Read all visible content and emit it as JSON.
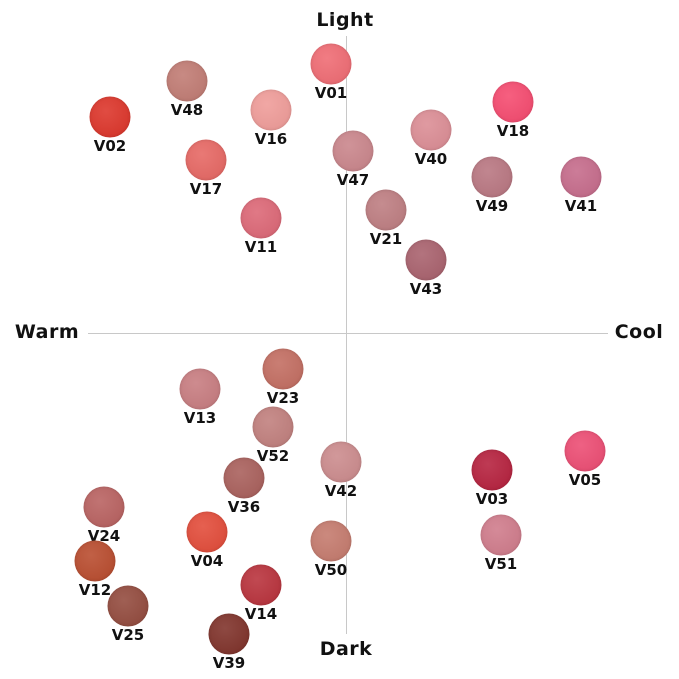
{
  "axes": {
    "top": "Light",
    "bottom": "Dark",
    "left": "Warm",
    "right": "Cool"
  },
  "swatches": [
    {
      "name": "V01",
      "color": "#ef6a72"
    },
    {
      "name": "V48",
      "color": "#c07a72"
    },
    {
      "name": "V02",
      "color": "#dc3328"
    },
    {
      "name": "V16",
      "color": "#ef9b98"
    },
    {
      "name": "V18",
      "color": "#f5496e"
    },
    {
      "name": "V40",
      "color": "#db8c94"
    },
    {
      "name": "V47",
      "color": "#c9848a"
    },
    {
      "name": "V17",
      "color": "#e66662"
    },
    {
      "name": "V49",
      "color": "#b87580"
    },
    {
      "name": "V41",
      "color": "#c56a8a"
    },
    {
      "name": "V21",
      "color": "#bd7c80"
    },
    {
      "name": "V11",
      "color": "#dc6675"
    },
    {
      "name": "V43",
      "color": "#a8606c"
    },
    {
      "name": "V23",
      "color": "#c26c60"
    },
    {
      "name": "V13",
      "color": "#c77b7f"
    },
    {
      "name": "V52",
      "color": "#c07e7c"
    },
    {
      "name": "V42",
      "color": "#cb8a8c"
    },
    {
      "name": "V05",
      "color": "#ec4b72"
    },
    {
      "name": "V03",
      "color": "#b51f3c"
    },
    {
      "name": "V36",
      "color": "#a85e5a"
    },
    {
      "name": "V24",
      "color": "#b8605f"
    },
    {
      "name": "V04",
      "color": "#e24a38"
    },
    {
      "name": "V51",
      "color": "#cf7a8a"
    },
    {
      "name": "V50",
      "color": "#c4796c"
    },
    {
      "name": "V12",
      "color": "#b84a2c"
    },
    {
      "name": "V14",
      "color": "#b8303a"
    },
    {
      "name": "V25",
      "color": "#92493c"
    },
    {
      "name": "V39",
      "color": "#7e3028"
    }
  ]
}
